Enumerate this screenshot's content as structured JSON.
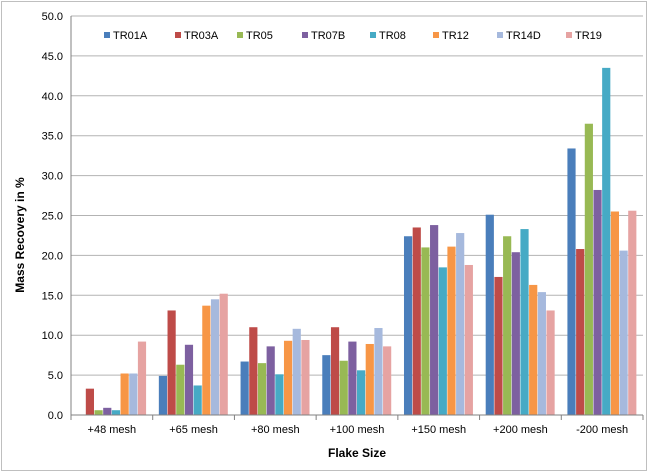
{
  "chart_data": {
    "type": "bar",
    "title": "",
    "xlabel": "Flake Size",
    "ylabel": "Mass Recovery in %",
    "ylim": [
      0,
      50
    ],
    "ytick_step": 5,
    "grid": true,
    "legend_position": "top",
    "categories": [
      "+48 mesh",
      "+65 mesh",
      "+80 mesh",
      "+100 mesh",
      "+150 mesh",
      "+200 mesh",
      "-200 mesh"
    ],
    "series": [
      {
        "name": "TR01A",
        "color": "#4a7ebb",
        "values": [
          0.0,
          4.9,
          6.7,
          7.5,
          22.4,
          25.1,
          33.4
        ]
      },
      {
        "name": "TR03A",
        "color": "#be4b48",
        "values": [
          3.3,
          13.1,
          11.0,
          11.0,
          23.5,
          17.3,
          20.8
        ]
      },
      {
        "name": "TR05",
        "color": "#98b954",
        "values": [
          0.6,
          6.3,
          6.5,
          6.8,
          21.0,
          22.4,
          36.5
        ]
      },
      {
        "name": "TR07B",
        "color": "#7d60a0",
        "values": [
          0.9,
          8.8,
          8.6,
          9.2,
          23.8,
          20.4,
          28.2
        ]
      },
      {
        "name": "TR08",
        "color": "#46aac5",
        "values": [
          0.6,
          3.7,
          5.1,
          5.6,
          18.5,
          23.3,
          43.5
        ]
      },
      {
        "name": "TR12",
        "color": "#f79646",
        "values": [
          5.2,
          13.7,
          9.3,
          8.9,
          21.1,
          16.3,
          25.5
        ]
      },
      {
        "name": "TR14D",
        "color": "#a6b9dd",
        "values": [
          5.2,
          14.5,
          10.8,
          10.9,
          22.8,
          15.4,
          20.6
        ]
      },
      {
        "name": "TR19",
        "color": "#e6a3a2",
        "values": [
          9.2,
          15.2,
          9.4,
          8.6,
          18.8,
          13.1,
          25.6
        ]
      }
    ]
  }
}
